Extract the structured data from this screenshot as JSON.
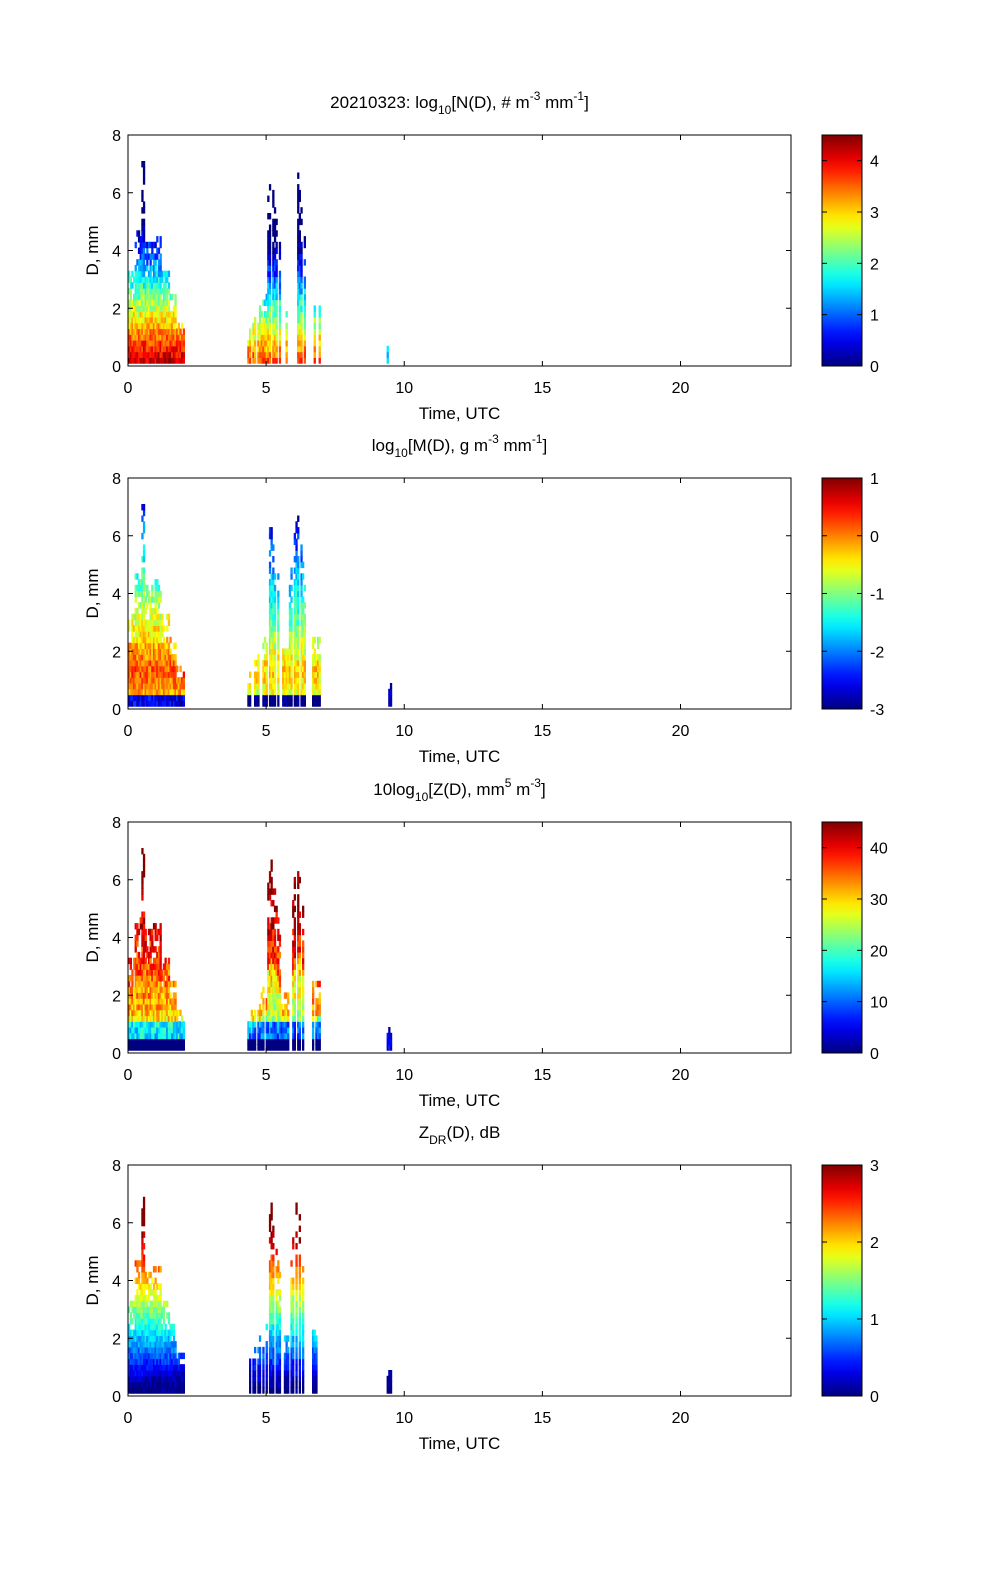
{
  "chart_data": [
    {
      "type": "heatmap",
      "title": "20210323: log",
      "title_sub": "10",
      "title_rest": "[N(D), # m",
      "title_sup1": "-3",
      "title_mid": " mm",
      "title_sup2": "-1",
      "title_end": "]",
      "xlabel": "Time, UTC",
      "ylabel": "D, mm",
      "xlim": [
        0,
        24
      ],
      "ylim": [
        0,
        8
      ],
      "xticks": [
        "0",
        "5",
        "10",
        "15",
        "20"
      ],
      "yticks": [
        "0",
        "2",
        "4",
        "6",
        "8"
      ],
      "colorbar": {
        "range": [
          0,
          4.5
        ],
        "ticks": [
          "0",
          "1",
          "2",
          "3",
          "4"
        ],
        "colormap": "jet"
      },
      "events": [
        {
          "t0": 0.0,
          "t1": 2.0,
          "dmax": 7.0
        },
        {
          "t0": 4.3,
          "t1": 5.6,
          "dmax": 6.6
        },
        {
          "t0": 5.8,
          "t1": 6.9,
          "dmax": 7.0
        },
        {
          "t0": 9.4,
          "t1": 9.5,
          "dmax": 0.8
        }
      ]
    },
    {
      "type": "heatmap",
      "title": "log",
      "title_sub": "10",
      "title_rest": "[M(D), g m",
      "title_sup1": "-3",
      "title_mid": " mm",
      "title_sup2": "-1",
      "title_end": "]",
      "xlabel": "Time, UTC",
      "ylabel": "D, mm",
      "xlim": [
        0,
        24
      ],
      "ylim": [
        0,
        8
      ],
      "xticks": [
        "0",
        "5",
        "10",
        "15",
        "20"
      ],
      "yticks": [
        "0",
        "2",
        "4",
        "6",
        "8"
      ],
      "colorbar": {
        "range": [
          -3,
          1
        ],
        "ticks": [
          "-3",
          "-2",
          "-1",
          "0",
          "1"
        ],
        "colormap": "jet"
      }
    },
    {
      "type": "heatmap",
      "title": "10log",
      "title_sub": "10",
      "title_rest": "[Z(D),  mm",
      "title_sup1": "5",
      "title_mid": " m",
      "title_sup2": "-3",
      "title_end": "]",
      "xlabel": "Time, UTC",
      "ylabel": "D, mm",
      "xlim": [
        0,
        24
      ],
      "ylim": [
        0,
        8
      ],
      "xticks": [
        "0",
        "5",
        "10",
        "15",
        "20"
      ],
      "yticks": [
        "0",
        "2",
        "4",
        "6",
        "8"
      ],
      "colorbar": {
        "range": [
          0,
          45
        ],
        "ticks": [
          "0",
          "10",
          "20",
          "30",
          "40"
        ],
        "colormap": "jet"
      }
    },
    {
      "type": "heatmap",
      "title": "Z",
      "title_sub": "DR",
      "title_rest": "(D), dB",
      "title_sup1": "",
      "title_mid": "",
      "title_sup2": "",
      "title_end": "",
      "xlabel": "Time, UTC",
      "ylabel": "D, mm",
      "xlim": [
        0,
        24
      ],
      "ylim": [
        0,
        8
      ],
      "xticks": [
        "0",
        "5",
        "10",
        "15",
        "20"
      ],
      "yticks": [
        "0",
        "2",
        "4",
        "6",
        "8"
      ],
      "colorbar": {
        "range": [
          0,
          3
        ],
        "ticks": [
          "0",
          "1",
          "2",
          "3"
        ],
        "colormap": "jet"
      }
    }
  ]
}
